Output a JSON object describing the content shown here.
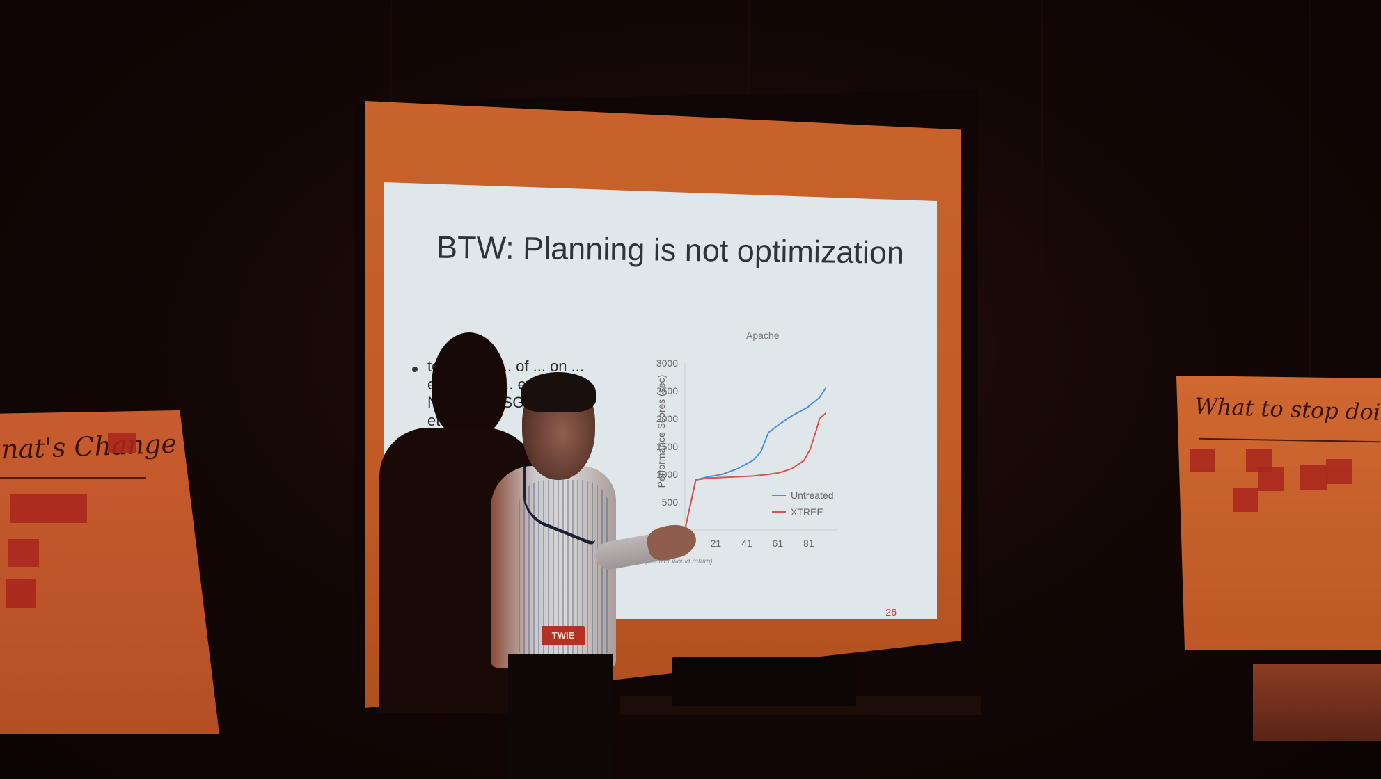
{
  "slide": {
    "title": "BTW: Planning is not optimization",
    "bullet_fragments": "to treat all ... of ... on ... e wi ... ect ... ew ... pu ... NSGA ... NSGA ... DE, etc",
    "slide_number": "26",
    "footnote": "(best optimizer would return)"
  },
  "chart_data": {
    "type": "line",
    "title": "Apache",
    "xlabel": "",
    "ylabel": "Performance Scores (sec)",
    "x_ticks": [
      "21",
      "41",
      "61",
      "81"
    ],
    "y_ticks": [
      "0",
      "500",
      "1000",
      "1500",
      "2000",
      "2500",
      "3000"
    ],
    "ylim": [
      0,
      3000
    ],
    "xlim": [
      1,
      100
    ],
    "legend_position": "bottom-right",
    "series": [
      {
        "name": "Untreated",
        "color": "#4a90d9",
        "x": [
          1,
          8,
          15,
          25,
          35,
          45,
          50,
          55,
          62,
          70,
          80,
          88,
          92
        ],
        "y": [
          0,
          900,
          950,
          1000,
          1100,
          1250,
          1400,
          1750,
          1900,
          2050,
          2200,
          2380,
          2550
        ]
      },
      {
        "name": "XTREE",
        "color": "#d9534f",
        "x": [
          1,
          8,
          15,
          30,
          45,
          55,
          62,
          70,
          78,
          82,
          86,
          88,
          92
        ],
        "y": [
          0,
          900,
          930,
          950,
          970,
          1000,
          1030,
          1100,
          1250,
          1450,
          1800,
          2000,
          2100
        ]
      }
    ]
  },
  "flipchart_left": {
    "text": "nat's Change"
  },
  "flipchart_right": {
    "text": "What to stop doing"
  },
  "badge": {
    "text": "TWIE"
  }
}
